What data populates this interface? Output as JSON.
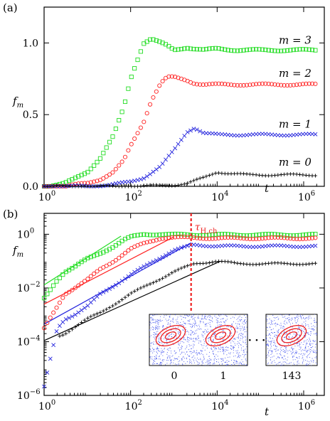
{
  "chart_data": [
    {
      "type": "scatter",
      "panel_label": "(a)",
      "xlabel": "t",
      "ylabel": "f_m",
      "xscale": "log",
      "yscale": "linear",
      "xlim": [
        1,
        3000000
      ],
      "ylim": [
        0,
        1.25
      ],
      "x_ticks": [
        {
          "base": "10",
          "exp": "0"
        },
        {
          "base": "10",
          "exp": "2"
        },
        {
          "base": "10",
          "exp": "4"
        },
        {
          "base": "10",
          "exp": "6"
        }
      ],
      "x_tick_values": [
        1,
        100,
        10000,
        1000000
      ],
      "y_ticks": [
        "0.0",
        "0.5",
        "1.0"
      ],
      "y_tick_values": [
        0,
        0.5,
        1.0
      ],
      "series": [
        {
          "name": "m = 3",
          "color": "#22dd22",
          "marker": "square",
          "x": [
            1,
            3,
            5,
            10,
            20,
            40,
            70,
            100,
            150,
            200,
            300,
            500,
            700,
            1000,
            2000,
            3000,
            5000,
            10000,
            30000,
            100000,
            300000,
            1000000,
            2000000
          ],
          "y": [
            0.0,
            0.02,
            0.05,
            0.1,
            0.2,
            0.35,
            0.55,
            0.75,
            0.9,
            1.0,
            1.03,
            1.0,
            0.98,
            0.95,
            0.97,
            0.96,
            0.95,
            0.96,
            0.95,
            0.95,
            0.95,
            0.95,
            0.95
          ]
        },
        {
          "name": "m = 2",
          "color": "#ff2222",
          "marker": "circle",
          "x": [
            1,
            3,
            5,
            10,
            20,
            40,
            70,
            100,
            200,
            300,
            500,
            700,
            1000,
            2000,
            3000,
            5000,
            10000,
            30000,
            100000,
            300000,
            1000000,
            2000000
          ],
          "y": [
            0.0,
            0.0,
            0.01,
            0.02,
            0.05,
            0.1,
            0.18,
            0.28,
            0.45,
            0.6,
            0.72,
            0.76,
            0.76,
            0.74,
            0.72,
            0.71,
            0.71,
            0.71,
            0.71,
            0.71,
            0.71,
            0.71
          ]
        },
        {
          "name": "m = 1",
          "color": "#2222dd",
          "marker": "x",
          "x": [
            1,
            10,
            30,
            100,
            200,
            500,
            1000,
            2000,
            3000,
            5000,
            10000,
            30000,
            100000,
            300000,
            1000000,
            2000000
          ],
          "y": [
            0.0,
            0.0,
            0.01,
            0.03,
            0.06,
            0.14,
            0.25,
            0.38,
            0.41,
            0.37,
            0.36,
            0.36,
            0.36,
            0.36,
            0.36,
            0.36
          ]
        },
        {
          "name": "m = 0",
          "color": "#000000",
          "marker": "plus",
          "x": [
            1,
            100,
            500,
            1000,
            2000,
            5000,
            10000,
            20000,
            50000,
            100000,
            1000000,
            2000000
          ],
          "y": [
            0.0,
            0.0,
            0.005,
            0.01,
            0.02,
            0.06,
            0.1,
            0.09,
            0.08,
            0.08,
            0.08,
            0.08
          ]
        }
      ]
    },
    {
      "type": "scatter",
      "panel_label": "(b)",
      "xlabel": "t",
      "ylabel": "f_m",
      "xscale": "log",
      "yscale": "log",
      "xlim": [
        1,
        3000000
      ],
      "ylim": [
        1e-06,
        6
      ],
      "x_ticks": [
        {
          "base": "10",
          "exp": "0"
        },
        {
          "base": "10",
          "exp": "2"
        },
        {
          "base": "10",
          "exp": "4"
        },
        {
          "base": "10",
          "exp": "6"
        }
      ],
      "x_tick_values": [
        1,
        100,
        10000,
        1000000
      ],
      "y_ticks": [
        {
          "base": "10",
          "exp": "0"
        },
        {
          "base": "10",
          "exp": "−2"
        },
        {
          "base": "10",
          "exp": "−4"
        },
        {
          "base": "10",
          "exp": "−6"
        }
      ],
      "y_tick_values": [
        1,
        0.01,
        0.0001,
        1e-06
      ],
      "vline": {
        "x": 2500,
        "label_main": "τ",
        "label_sub": "H,ch",
        "color": "#ee2222"
      },
      "fits": [
        {
          "color": "#22dd22",
          "x": [
            1,
            60
          ],
          "y": [
            0.013,
            0.85
          ]
        },
        {
          "color": "#ff2222",
          "x": [
            1,
            1000
          ],
          "y": [
            0.0025,
            0.8
          ]
        },
        {
          "color": "#2222dd",
          "x": [
            1,
            2500
          ],
          "y": [
            0.00045,
            0.48
          ]
        },
        {
          "color": "#000000",
          "x": [
            1,
            12000
          ],
          "y": [
            0.00011,
            0.1
          ]
        }
      ],
      "series": [
        {
          "name": "m = 3",
          "color": "#22dd22",
          "marker": "square",
          "x": [
            1,
            2,
            3,
            5,
            10,
            20,
            40,
            70,
            100,
            200,
            500,
            1000,
            10000,
            100000,
            2000000
          ],
          "y": [
            0.004,
            0.02,
            0.04,
            0.06,
            0.12,
            0.2,
            0.35,
            0.6,
            0.78,
            1.0,
            1.0,
            0.96,
            0.95,
            0.95,
            0.95
          ]
        },
        {
          "name": "m = 2",
          "color": "#ff2222",
          "marker": "circle",
          "x": [
            1,
            2,
            3,
            5,
            10,
            20,
            40,
            100,
            200,
            500,
            1000,
            10000,
            100000,
            2000000
          ],
          "y": [
            0.0003,
            0.002,
            0.006,
            0.01,
            0.02,
            0.05,
            0.1,
            0.28,
            0.45,
            0.72,
            0.76,
            0.71,
            0.71,
            0.71
          ]
        },
        {
          "name": "m = 1",
          "color": "#2222dd",
          "marker": "x",
          "x": [
            1,
            2,
            3,
            5,
            10,
            20,
            50,
            100,
            300,
            1000,
            3000,
            10000,
            100000,
            2000000
          ],
          "y": [
            2e-06,
            0.0003,
            0.0007,
            0.001,
            0.002,
            0.006,
            0.015,
            0.03,
            0.09,
            0.25,
            0.41,
            0.36,
            0.36,
            0.36
          ]
        },
        {
          "name": "m = 0",
          "color": "#000000",
          "marker": "plus",
          "x": [
            2,
            3,
            5,
            10,
            20,
            50,
            100,
            300,
            1000,
            3000,
            10000,
            30000,
            100000,
            2000000
          ],
          "y": [
            0.00015,
            0.0002,
            0.00035,
            0.0007,
            0.0012,
            0.003,
            0.006,
            0.015,
            0.04,
            0.08,
            0.1,
            0.08,
            0.08,
            0.08
          ]
        }
      ],
      "inset_labels": [
        "0",
        "1",
        "143"
      ],
      "inset_ellipsis": "· · ·"
    }
  ]
}
